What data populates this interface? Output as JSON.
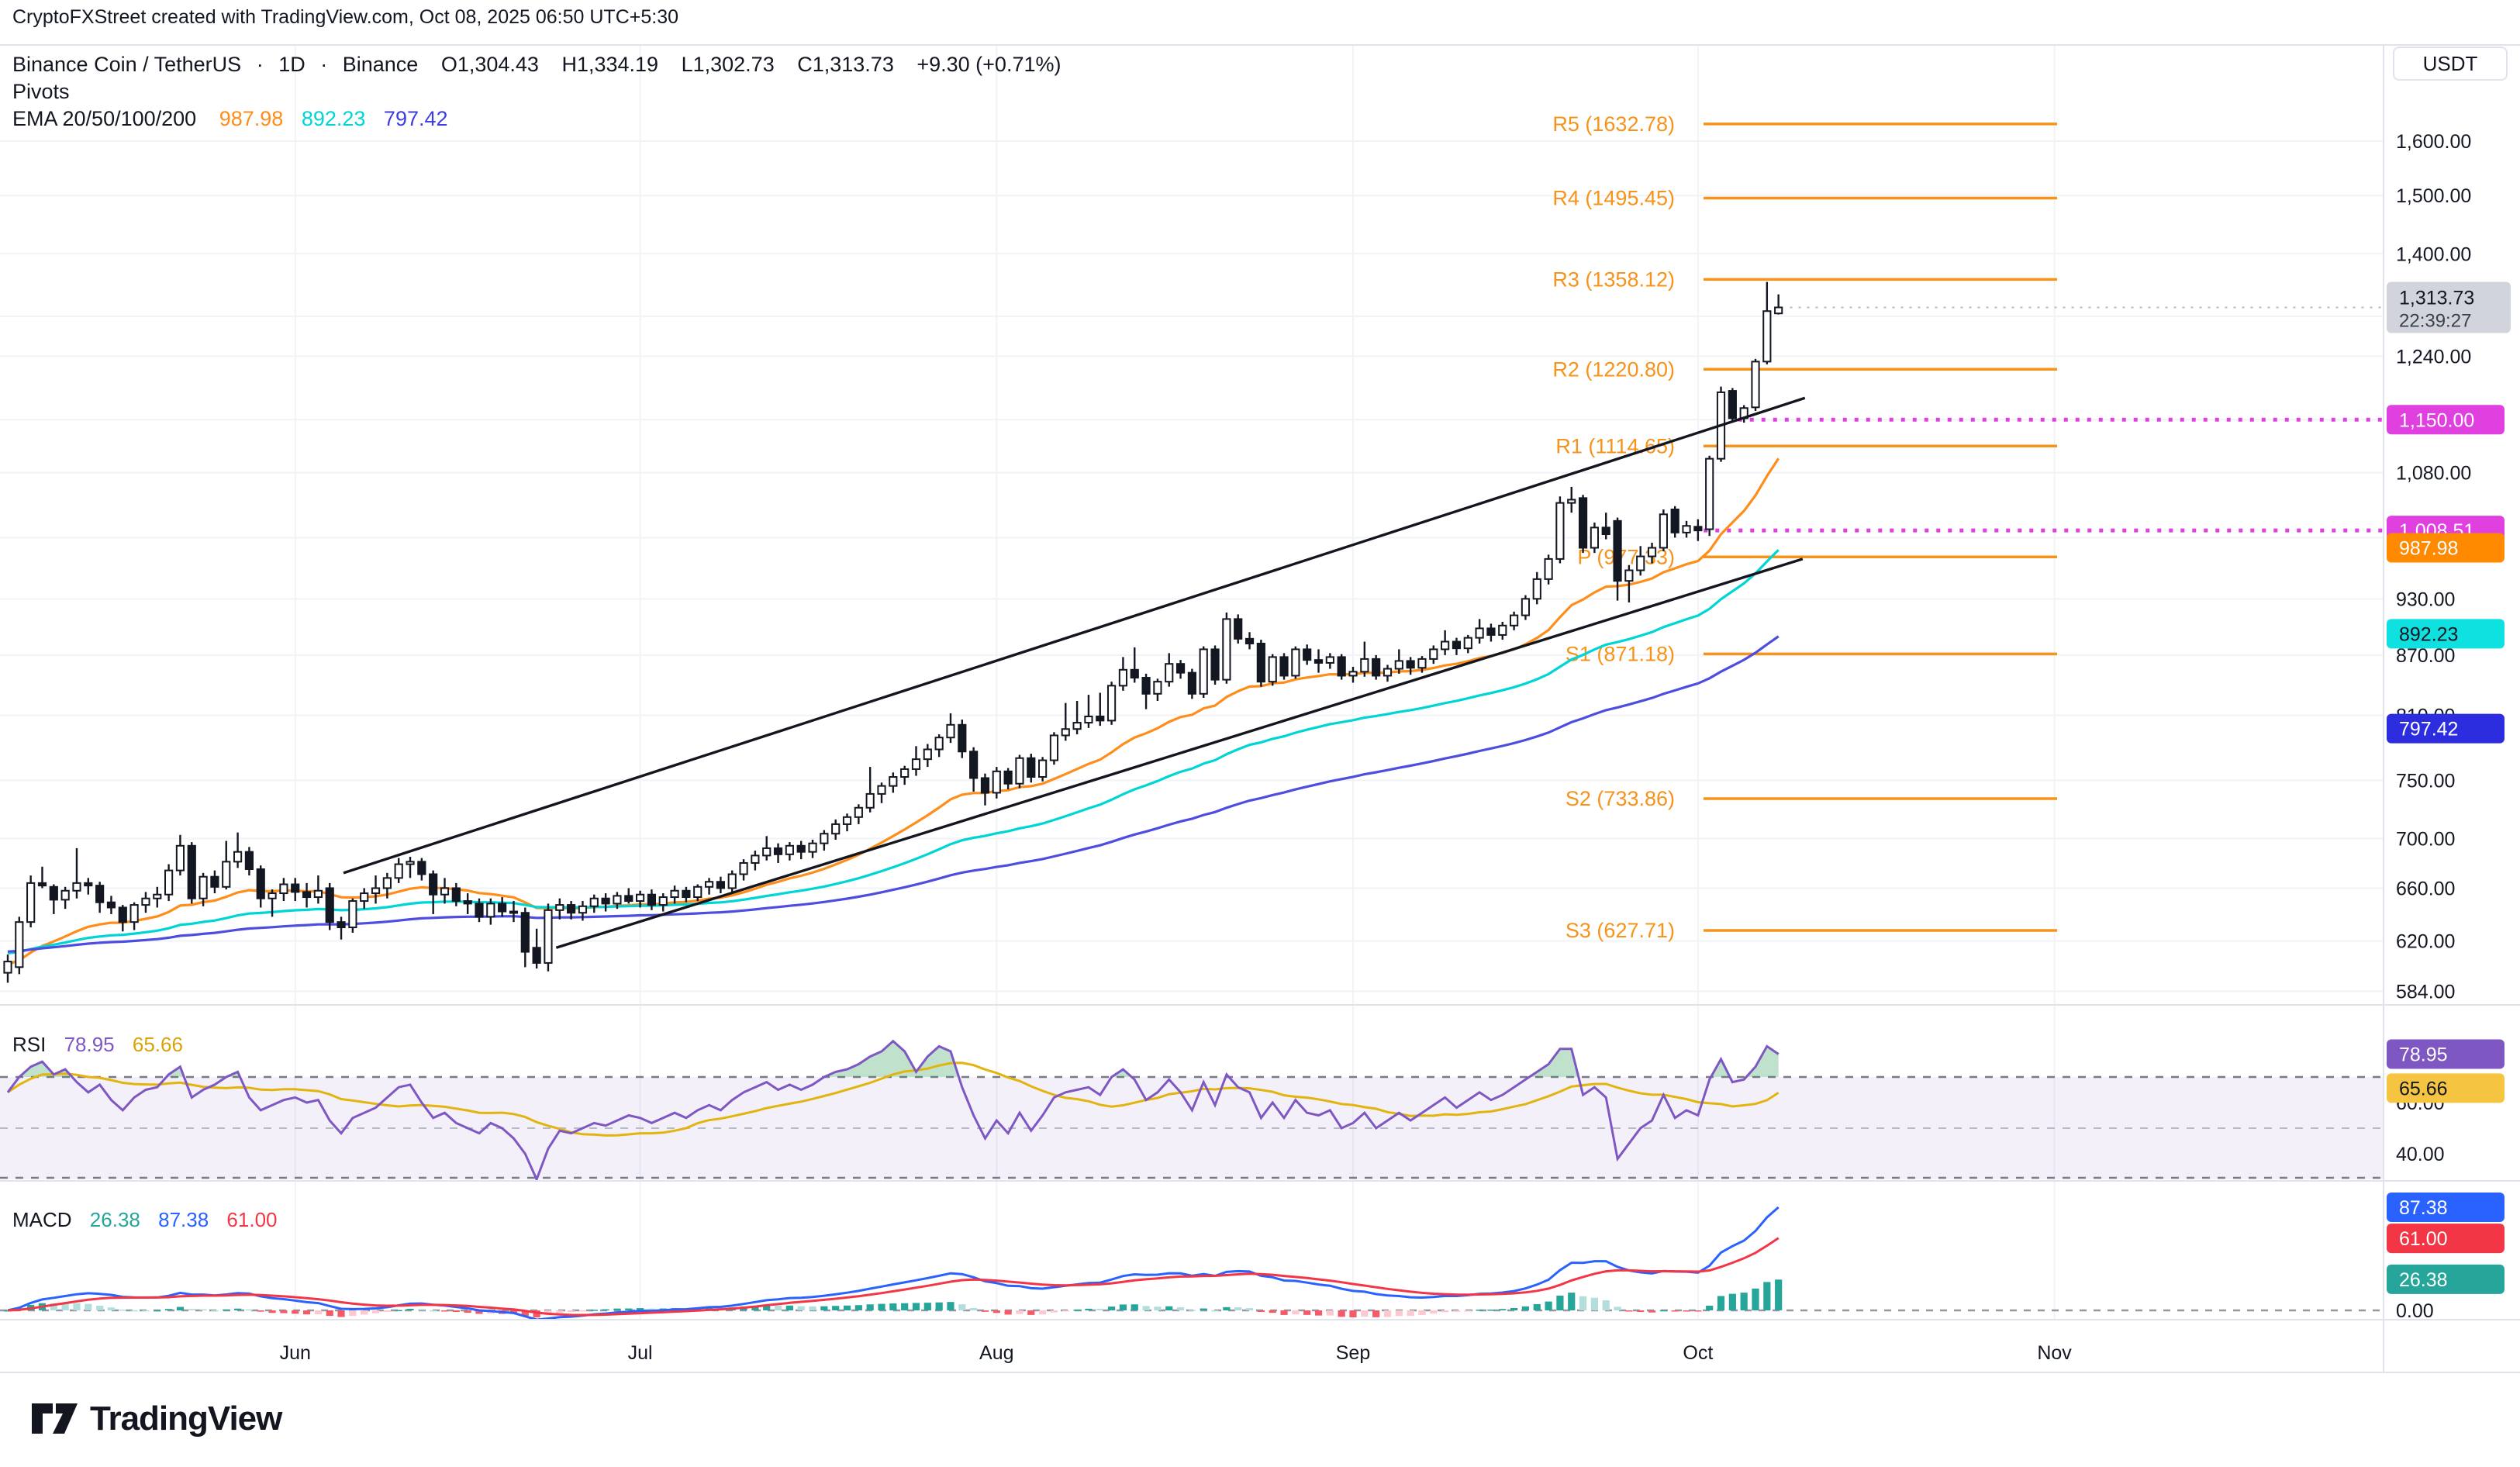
{
  "attribution": "CryptoFXStreet created with TradingView.com, Oct 08, 2025 06:50 UTC+5:30",
  "symbol": {
    "title": "Binance Coin / TetherUS",
    "interval": "1D",
    "exchange": "Binance",
    "sep": "·",
    "o": "O1,304.43",
    "h": "H1,334.19",
    "l": "L1,302.73",
    "c": "C1,313.73",
    "change": "+9.30 (+0.71%)",
    "pivots_label": "Pivots",
    "ema_label": "EMA 20/50/100/200",
    "ema_values": [
      "987.98",
      "892.23",
      "797.42"
    ]
  },
  "rsi_legend": {
    "label": "RSI",
    "value": "78.95",
    "ma": "65.66"
  },
  "macd_legend": {
    "label": "MACD",
    "hist": "26.38",
    "macd": "87.38",
    "signal": "61.00"
  },
  "axis": {
    "currency": "USDT"
  },
  "footer": {
    "brand": "TradingView"
  },
  "colors": {
    "up": "#ffffff",
    "down": "#131722",
    "border": "#131722",
    "ema20": "#ff8d1a",
    "ema50": "#00d5d5",
    "ema100": "#4d4de0",
    "pivot": "#f7931a",
    "magenta": "#e040e0",
    "gridline": "#f2f3f7",
    "divider": "#e0e3eb",
    "rsi": "#7e57c2",
    "rsiMa": "#e3b40e",
    "macd": "#2962ff",
    "signal": "#f23645",
    "histUp": "#26a69a",
    "histUpWeak": "#b2dfdb",
    "histDown": "#f55a68",
    "histDownWeak": "#fbc9cf",
    "priceBadgeBg": "#d1d4dc",
    "axisText": "#131722",
    "emaBadge20": "#ff8a00",
    "emaBadge50": "#0fe0e0",
    "emaBadge100": "#2d2de0",
    "rsiBadge": "#7e57c2",
    "rsiMaBadge": "#f5c542",
    "macdBadge": "#2962ff",
    "signalBadge": "#f23645",
    "histBadge": "#26a69a"
  },
  "chart_data": {
    "type": "candlestick",
    "title": "Binance Coin / TetherUS 1D with Pivots, EMA 20/50/100, RSI and MACD",
    "y_scale": "log",
    "price_axis_ticks": [
      1600,
      1500,
      1400,
      1300,
      1240,
      1150,
      1080,
      1000,
      930,
      870,
      810,
      750,
      700,
      660,
      620,
      584
    ],
    "months": [
      {
        "label": "Jun",
        "index": 25
      },
      {
        "label": "Jul",
        "index": 55
      },
      {
        "label": "Aug",
        "index": 86
      },
      {
        "label": "Sep",
        "index": 117
      },
      {
        "label": "Oct",
        "index": 147
      },
      {
        "label": "Nov",
        "index": 178
      }
    ],
    "last_price": 1313.73,
    "countdown": "22:39:27",
    "magenta_levels": [
      {
        "value": 1150.0,
        "label": "1,150.00",
        "start_index": 150.5
      },
      {
        "value": 1008.51,
        "label": "1,008.51",
        "start_index": 147.5
      }
    ],
    "pivots": [
      {
        "name": "R5",
        "value": 1632.78
      },
      {
        "name": "R4",
        "value": 1495.45
      },
      {
        "name": "R3",
        "value": 1358.12
      },
      {
        "name": "R2",
        "value": 1220.8
      },
      {
        "name": "R1",
        "value": 1114.65
      },
      {
        "name": "P",
        "value": 977.33
      },
      {
        "name": "S1",
        "value": 871.18
      },
      {
        "name": "S2",
        "value": 733.86
      },
      {
        "name": "S3",
        "value": 627.71
      }
    ],
    "trendlines": [
      {
        "from": {
          "i": 29.2,
          "price": 672
        },
        "to": {
          "i": 156.3,
          "price": 1180
        }
      },
      {
        "from": {
          "i": 47.7,
          "price": 615
        },
        "to": {
          "i": 156.1,
          "price": 975
        }
      }
    ],
    "ema_periods": [
      20,
      50,
      100
    ],
    "ema_last_values": [
      987.98,
      892.23,
      797.42
    ],
    "rsi_ticks": [
      60,
      40
    ],
    "rsi_levels": [
      70,
      50,
      30
    ],
    "rsi_last": 78.95,
    "rsi_ma_last": 65.66,
    "macd_ticks": [
      0
    ],
    "macd_last": 87.38,
    "signal_last": 61.0,
    "hist_last": 26.38,
    "candles": [
      [
        597,
        610,
        590,
        605
      ],
      [
        601,
        638,
        596,
        634
      ],
      [
        634,
        670,
        630,
        664
      ],
      [
        664,
        677,
        660,
        662
      ],
      [
        661,
        663,
        640,
        651
      ],
      [
        651,
        661,
        644,
        658
      ],
      [
        658,
        692,
        652,
        664
      ],
      [
        664,
        668,
        655,
        662
      ],
      [
        662,
        665,
        641,
        649
      ],
      [
        649,
        654,
        640,
        645
      ],
      [
        645,
        647,
        627,
        634
      ],
      [
        634,
        649,
        628,
        647
      ],
      [
        647,
        657,
        641,
        652
      ],
      [
        652,
        661,
        645,
        655
      ],
      [
        655,
        679,
        650,
        674
      ],
      [
        674,
        703,
        670,
        694
      ],
      [
        694,
        697,
        648,
        652
      ],
      [
        652,
        672,
        646,
        669
      ],
      [
        669,
        674,
        656,
        661
      ],
      [
        661,
        698,
        659,
        681
      ],
      [
        681,
        705,
        676,
        689
      ],
      [
        689,
        693,
        670,
        675
      ],
      [
        675,
        678,
        645,
        652
      ],
      [
        652,
        659,
        638,
        656
      ],
      [
        656,
        668,
        650,
        663
      ],
      [
        663,
        668,
        650,
        657
      ],
      [
        657,
        664,
        645,
        653
      ],
      [
        653,
        670,
        648,
        658
      ],
      [
        660,
        664,
        628,
        634
      ],
      [
        634,
        638,
        621,
        630
      ],
      [
        630,
        652,
        626,
        650
      ],
      [
        650,
        660,
        644,
        656
      ],
      [
        656,
        670,
        648,
        660
      ],
      [
        660,
        672,
        652,
        668
      ],
      [
        668,
        684,
        664,
        679
      ],
      [
        679,
        685,
        668,
        681
      ],
      [
        681,
        684,
        666,
        671
      ],
      [
        671,
        674,
        640,
        655
      ],
      [
        655,
        668,
        648,
        660
      ],
      [
        660,
        664,
        646,
        650
      ],
      [
        650,
        656,
        640,
        648
      ],
      [
        648,
        652,
        634,
        638
      ],
      [
        638,
        652,
        632,
        648
      ],
      [
        648,
        653,
        638,
        642
      ],
      [
        642,
        650,
        634,
        641
      ],
      [
        641,
        645,
        601,
        612
      ],
      [
        615,
        629,
        600,
        604
      ],
      [
        604,
        648,
        598,
        643
      ],
      [
        643,
        652,
        636,
        647
      ],
      [
        647,
        650,
        636,
        641
      ],
      [
        641,
        650,
        635,
        646
      ],
      [
        646,
        655,
        641,
        652
      ],
      [
        652,
        656,
        642,
        648
      ],
      [
        648,
        657,
        644,
        654
      ],
      [
        654,
        660,
        648,
        650
      ],
      [
        650,
        658,
        645,
        655
      ],
      [
        655,
        659,
        643,
        647
      ],
      [
        647,
        656,
        642,
        653
      ],
      [
        653,
        662,
        648,
        658
      ],
      [
        658,
        661,
        649,
        653
      ],
      [
        653,
        663,
        650,
        661
      ],
      [
        661,
        668,
        655,
        665
      ],
      [
        665,
        669,
        656,
        660
      ],
      [
        660,
        674,
        657,
        671
      ],
      [
        671,
        683,
        666,
        680
      ],
      [
        680,
        690,
        674,
        686
      ],
      [
        686,
        702,
        682,
        692
      ],
      [
        692,
        696,
        680,
        687
      ],
      [
        687,
        697,
        682,
        694
      ],
      [
        694,
        698,
        683,
        689
      ],
      [
        689,
        699,
        684,
        696
      ],
      [
        696,
        707,
        690,
        704
      ],
      [
        704,
        716,
        699,
        712
      ],
      [
        712,
        721,
        706,
        718
      ],
      [
        718,
        729,
        712,
        726
      ],
      [
        726,
        762,
        722,
        738
      ],
      [
        738,
        748,
        730,
        745
      ],
      [
        745,
        757,
        739,
        753
      ],
      [
        753,
        763,
        746,
        760
      ],
      [
        760,
        781,
        754,
        769
      ],
      [
        769,
        783,
        762,
        778
      ],
      [
        778,
        792,
        771,
        789
      ],
      [
        789,
        812,
        784,
        801
      ],
      [
        801,
        806,
        770,
        776
      ],
      [
        776,
        780,
        740,
        752
      ],
      [
        752,
        756,
        728,
        739
      ],
      [
        739,
        762,
        734,
        758
      ],
      [
        758,
        761,
        742,
        747
      ],
      [
        747,
        773,
        743,
        770
      ],
      [
        770,
        774,
        748,
        753
      ],
      [
        753,
        771,
        749,
        768
      ],
      [
        768,
        794,
        764,
        791
      ],
      [
        791,
        822,
        786,
        797
      ],
      [
        797,
        824,
        792,
        803
      ],
      [
        803,
        830,
        798,
        809
      ],
      [
        809,
        832,
        800,
        805
      ],
      [
        805,
        843,
        801,
        839
      ],
      [
        839,
        868,
        834,
        855
      ],
      [
        855,
        878,
        842,
        847
      ],
      [
        847,
        851,
        816,
        831
      ],
      [
        831,
        846,
        824,
        843
      ],
      [
        843,
        872,
        838,
        861
      ],
      [
        861,
        865,
        846,
        852
      ],
      [
        852,
        856,
        826,
        831
      ],
      [
        831,
        879,
        827,
        876
      ],
      [
        876,
        880,
        840,
        845
      ],
      [
        845,
        915,
        841,
        908
      ],
      [
        908,
        913,
        882,
        887
      ],
      [
        887,
        894,
        876,
        882
      ],
      [
        882,
        886,
        838,
        843
      ],
      [
        843,
        871,
        839,
        868
      ],
      [
        868,
        872,
        845,
        849
      ],
      [
        849,
        879,
        846,
        876
      ],
      [
        876,
        881,
        860,
        865
      ],
      [
        865,
        876,
        852,
        862
      ],
      [
        862,
        872,
        856,
        868
      ],
      [
        868,
        871,
        845,
        849
      ],
      [
        849,
        858,
        842,
        853
      ],
      [
        853,
        884,
        848,
        866
      ],
      [
        866,
        870,
        845,
        849
      ],
      [
        849,
        860,
        843,
        856
      ],
      [
        856,
        876,
        851,
        864
      ],
      [
        864,
        868,
        850,
        857
      ],
      [
        857,
        869,
        852,
        866
      ],
      [
        866,
        880,
        861,
        876
      ],
      [
        876,
        896,
        870,
        884
      ],
      [
        884,
        888,
        870,
        877
      ],
      [
        877,
        891,
        872,
        888
      ],
      [
        888,
        908,
        882,
        898
      ],
      [
        898,
        903,
        884,
        891
      ],
      [
        891,
        905,
        886,
        901
      ],
      [
        901,
        916,
        896,
        912
      ],
      [
        912,
        934,
        907,
        930
      ],
      [
        930,
        960,
        924,
        952
      ],
      [
        952,
        980,
        946,
        975
      ],
      [
        975,
        1050,
        970,
        1042
      ],
      [
        1042,
        1062,
        1030,
        1046
      ],
      [
        1048,
        1052,
        982,
        988
      ],
      [
        988,
        1018,
        982,
        1012
      ],
      [
        1012,
        1030,
        998,
        1004
      ],
      [
        1020,
        1024,
        928,
        950
      ],
      [
        950,
        968,
        926,
        962
      ],
      [
        962,
        990,
        956,
        978
      ],
      [
        978,
        994,
        970,
        988
      ],
      [
        988,
        1034,
        984,
        1028
      ],
      [
        1034,
        1038,
        1000,
        1006
      ],
      [
        1006,
        1020,
        1000,
        1014
      ],
      [
        1013,
        1022,
        996,
        1008.5
      ],
      [
        1010,
        1102,
        1002,
        1098
      ],
      [
        1098,
        1196,
        1094,
        1188
      ],
      [
        1190,
        1194,
        1148,
        1152
      ],
      [
        1152,
        1170,
        1146,
        1166
      ],
      [
        1167,
        1236,
        1162,
        1232
      ],
      [
        1232,
        1354,
        1228,
        1308
      ],
      [
        1304.43,
        1334.19,
        1302.73,
        1313.73
      ]
    ],
    "rsi": [
      64,
      70,
      74,
      76,
      71,
      73,
      68,
      64,
      67,
      61,
      57,
      62,
      65,
      66,
      71,
      74,
      62,
      65,
      67,
      70,
      72,
      62,
      57,
      59,
      61,
      62,
      60,
      61,
      53,
      48,
      54,
      56,
      58,
      62,
      66,
      67,
      60,
      54,
      56,
      52,
      50,
      48,
      52,
      50,
      46,
      40,
      30,
      42,
      49,
      48,
      50,
      52,
      51,
      53,
      55,
      54,
      52,
      54,
      56,
      54,
      57,
      59,
      57,
      61,
      64,
      66,
      68,
      65,
      67,
      65,
      67,
      70,
      72,
      73,
      75,
      78,
      80,
      84,
      80,
      72,
      78,
      82,
      80,
      66,
      55,
      46,
      53,
      48,
      56,
      49,
      55,
      62,
      64,
      65,
      66,
      63,
      70,
      73,
      69,
      61,
      64,
      69,
      64,
      57,
      68,
      59,
      71,
      66,
      64,
      54,
      60,
      54,
      61,
      56,
      55,
      57,
      50,
      52,
      56,
      50,
      53,
      56,
      53,
      56,
      59,
      62,
      58,
      61,
      64,
      61,
      63,
      66,
      69,
      72,
      75,
      81,
      81,
      63,
      66,
      62,
      38,
      44,
      50,
      53,
      63,
      54,
      57,
      55,
      69,
      77,
      68,
      69,
      74,
      82,
      78.95
    ]
  }
}
